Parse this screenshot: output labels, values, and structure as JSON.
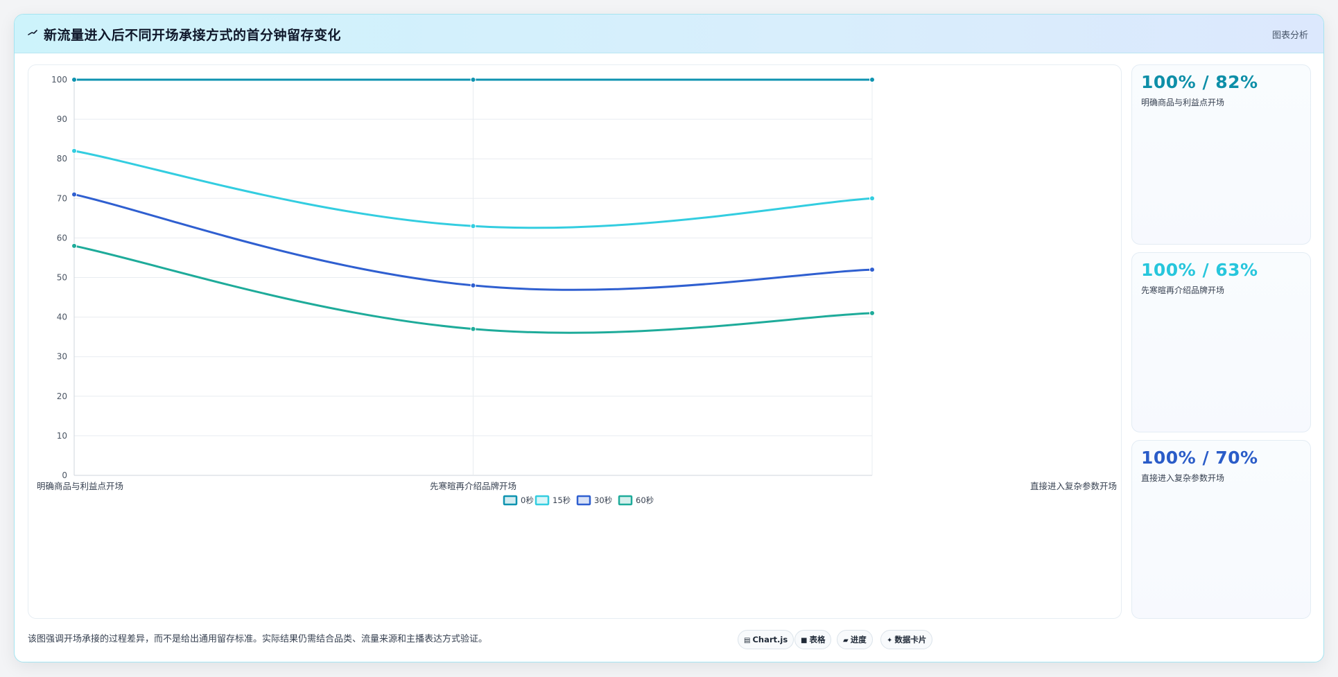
{
  "header": {
    "icon": "chart-line-icon",
    "title": "新流量进入后不同开场承接方式的首分钟留存变化",
    "action_label": "图表分析"
  },
  "chart_data": {
    "type": "line",
    "categories": [
      "明确商品与利益点开场",
      "先寒暄再介绍品牌开场",
      "直接进入复杂参数开场"
    ],
    "series": [
      {
        "name": "0秒",
        "values": [
          100,
          100,
          100
        ],
        "color": "#0e93b0"
      },
      {
        "name": "15秒",
        "values": [
          82,
          63,
          70
        ],
        "color": "#33cde0"
      },
      {
        "name": "30秒",
        "values": [
          71,
          48,
          52
        ],
        "color": "#2f5fd0"
      },
      {
        "name": "60秒",
        "values": [
          58,
          37,
          41
        ],
        "color": "#1eab9a"
      }
    ],
    "ylim": [
      0,
      100
    ],
    "yticks": [
      0,
      10,
      20,
      30,
      40,
      50,
      60,
      70,
      80,
      90,
      100
    ],
    "grid": true,
    "legend_position": "bottom-center",
    "curve": "smooth"
  },
  "stat_cards": [
    {
      "value": "100% / 82%",
      "label": "明确商品与利益点开场",
      "color": "#0e8fa8"
    },
    {
      "value": "100% / 63%",
      "label": "先寒暄再介绍品牌开场",
      "color": "#27c6dc"
    },
    {
      "value": "100% / 70%",
      "label": "直接进入复杂参数开场",
      "color": "#2a5cc8"
    }
  ],
  "footer": {
    "note": "该图强调开场承接的过程差异，而不是给出通用留存标准。实际结果仍需结合品类、流量来源和主播表达方式验证。",
    "chips": [
      {
        "icon": "chart-icon",
        "glyph": "▤",
        "label": "Chart.js"
      },
      {
        "icon": "table-icon",
        "glyph": "■",
        "label": "表格"
      },
      {
        "icon": "progress-icon",
        "glyph": "▰",
        "label": "进度"
      },
      {
        "icon": "data-card-icon",
        "glyph": "✦",
        "label": "数据卡片"
      }
    ]
  }
}
